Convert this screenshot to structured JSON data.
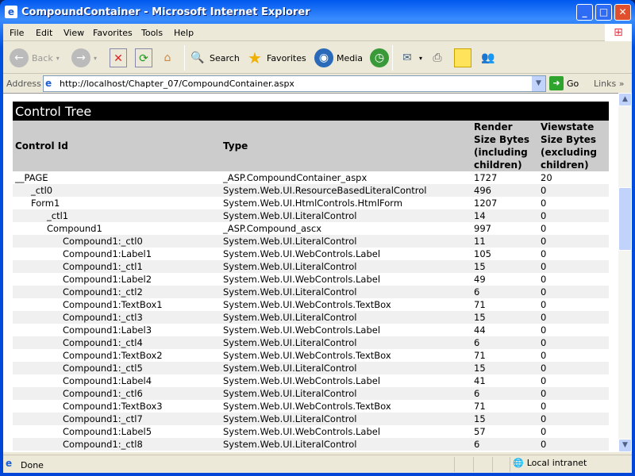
{
  "window": {
    "title": "CompoundContainer - Microsoft Internet Explorer"
  },
  "menu": [
    "File",
    "Edit",
    "View",
    "Favorites",
    "Tools",
    "Help"
  ],
  "toolbar": {
    "back": "Back",
    "search": "Search",
    "favorites": "Favorites",
    "media": "Media"
  },
  "address": {
    "label": "Address",
    "url": "http://localhost/Chapter_07/CompoundContainer.aspx",
    "go": "Go",
    "links": "Links"
  },
  "table": {
    "title": "Control Tree",
    "headers": [
      "Control Id",
      "Type",
      "Render Size Bytes (including children)",
      "Viewstate Size Bytes (excluding children)"
    ],
    "rows": [
      {
        "id": "__PAGE",
        "level": 0,
        "type": "_ASP.CompoundContainer_aspx",
        "render": "1727",
        "viewstate": "20"
      },
      {
        "id": "_ctl0",
        "level": 1,
        "type": "System.Web.UI.ResourceBasedLiteralControl",
        "render": "496",
        "viewstate": "0"
      },
      {
        "id": "Form1",
        "level": 1,
        "type": "System.Web.UI.HtmlControls.HtmlForm",
        "render": "1207",
        "viewstate": "0"
      },
      {
        "id": "_ctl1",
        "level": 2,
        "type": "System.Web.UI.LiteralControl",
        "render": "14",
        "viewstate": "0"
      },
      {
        "id": "Compound1",
        "level": 2,
        "type": "_ASP.Compound_ascx",
        "render": "997",
        "viewstate": "0"
      },
      {
        "id": "Compound1:_ctl0",
        "level": 3,
        "type": "System.Web.UI.LiteralControl",
        "render": "11",
        "viewstate": "0"
      },
      {
        "id": "Compound1:Label1",
        "level": 3,
        "type": "System.Web.UI.WebControls.Label",
        "render": "105",
        "viewstate": "0"
      },
      {
        "id": "Compound1:_ctl1",
        "level": 3,
        "type": "System.Web.UI.LiteralControl",
        "render": "15",
        "viewstate": "0"
      },
      {
        "id": "Compound1:Label2",
        "level": 3,
        "type": "System.Web.UI.WebControls.Label",
        "render": "49",
        "viewstate": "0"
      },
      {
        "id": "Compound1:_ctl2",
        "level": 3,
        "type": "System.Web.UI.LiteralControl",
        "render": "6",
        "viewstate": "0"
      },
      {
        "id": "Compound1:TextBox1",
        "level": 3,
        "type": "System.Web.UI.WebControls.TextBox",
        "render": "71",
        "viewstate": "0"
      },
      {
        "id": "Compound1:_ctl3",
        "level": 3,
        "type": "System.Web.UI.LiteralControl",
        "render": "15",
        "viewstate": "0"
      },
      {
        "id": "Compound1:Label3",
        "level": 3,
        "type": "System.Web.UI.WebControls.Label",
        "render": "44",
        "viewstate": "0"
      },
      {
        "id": "Compound1:_ctl4",
        "level": 3,
        "type": "System.Web.UI.LiteralControl",
        "render": "6",
        "viewstate": "0"
      },
      {
        "id": "Compound1:TextBox2",
        "level": 3,
        "type": "System.Web.UI.WebControls.TextBox",
        "render": "71",
        "viewstate": "0"
      },
      {
        "id": "Compound1:_ctl5",
        "level": 3,
        "type": "System.Web.UI.LiteralControl",
        "render": "15",
        "viewstate": "0"
      },
      {
        "id": "Compound1:Label4",
        "level": 3,
        "type": "System.Web.UI.WebControls.Label",
        "render": "41",
        "viewstate": "0"
      },
      {
        "id": "Compound1:_ctl6",
        "level": 3,
        "type": "System.Web.UI.LiteralControl",
        "render": "6",
        "viewstate": "0"
      },
      {
        "id": "Compound1:TextBox3",
        "level": 3,
        "type": "System.Web.UI.WebControls.TextBox",
        "render": "71",
        "viewstate": "0"
      },
      {
        "id": "Compound1:_ctl7",
        "level": 3,
        "type": "System.Web.UI.LiteralControl",
        "render": "15",
        "viewstate": "0"
      },
      {
        "id": "Compound1:Label5",
        "level": 3,
        "type": "System.Web.UI.WebControls.Label",
        "render": "57",
        "viewstate": "0"
      },
      {
        "id": "Compound1:_ctl8",
        "level": 3,
        "type": "System.Web.UI.LiteralControl",
        "render": "6",
        "viewstate": "0"
      }
    ]
  },
  "status": {
    "text": "Done",
    "zone": "Local intranet"
  }
}
